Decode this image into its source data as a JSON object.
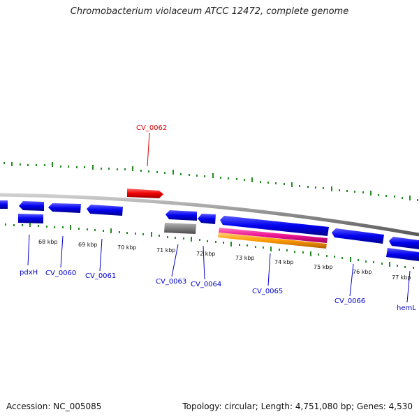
{
  "title": "Chromobacterium violaceum ATCC 12472, complete genome",
  "footer": {
    "accession": "Accession: NC_005085",
    "summary": "Topology: circular; Length: 4,751,080 bp; Genes: 4,530"
  },
  "colors": {
    "forward_strand_gene": "#0000ee",
    "reverse_strand_gene": "#0000ee",
    "rna_gene": "#ee0000",
    "pseudogene": "#808080",
    "pink_feature": "#ee1493",
    "orange_feature": "#ff9900",
    "backbone": "#8a8a8a",
    "gc_ticks": "#228b22",
    "label_blue": "#0000cc",
    "label_red": "#dd0000"
  },
  "scale_labels": [
    "68 kbp",
    "69 kbp",
    "70 kbp",
    "71 kbp",
    "72 kbp",
    "73 kbp",
    "74 kbp",
    "75 kbp",
    "76 kbp",
    "77 kbp"
  ],
  "gene_labels": [
    {
      "text": "CV_0062",
      "color": "red"
    },
    {
      "text": "pdxH",
      "color": "blue"
    },
    {
      "text": "CV_0060",
      "color": "blue"
    },
    {
      "text": "CV_0061",
      "color": "blue"
    },
    {
      "text": "CV_0063",
      "color": "blue"
    },
    {
      "text": "CV_0064",
      "color": "blue"
    },
    {
      "text": "CV_0065",
      "color": "blue"
    },
    {
      "text": "CV_0066",
      "color": "blue"
    },
    {
      "text": "hemL",
      "color": "blue"
    }
  ]
}
